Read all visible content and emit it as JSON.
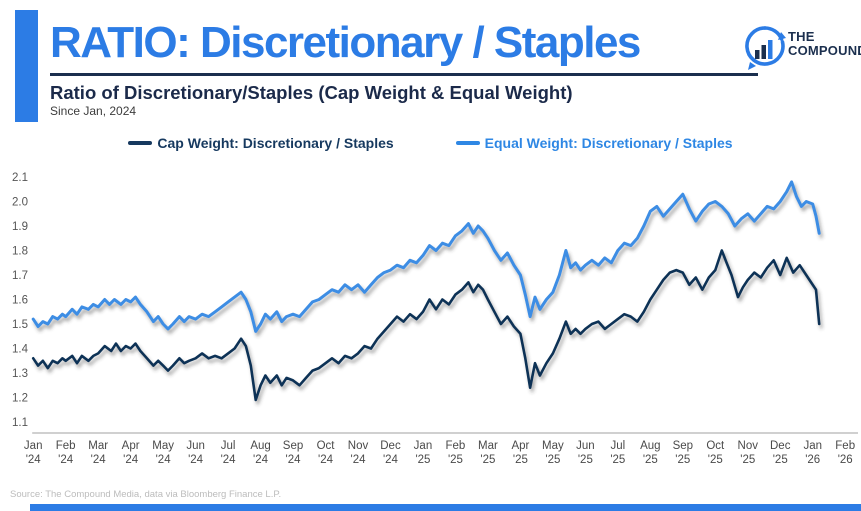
{
  "header": {
    "title": "RATIO: Discretionary / Staples",
    "subtitle": "Ratio of Discretionary/Staples (Cap Weight & Equal Weight)",
    "subnote": "Since Jan, 2024",
    "logo_line1": "THE",
    "logo_line2": "COMPOUND"
  },
  "legend": [
    {
      "label": "Cap Weight: Discretionary / Staples",
      "color": "#16395f"
    },
    {
      "label": "Equal Weight: Discretionary / Staples",
      "color": "#2e87e4"
    }
  ],
  "footer": {
    "source": "Source: The Compound Media, data via Bloomberg Finance L.P."
  },
  "colors": {
    "accent_blue": "#2c7ce5",
    "navy": "#1b2f4e",
    "cap_weight_line": "#0f3356",
    "equal_weight_line": "#3d8de4",
    "axis_text": "#4a4a4a",
    "axis_line": "#b3b3b3"
  },
  "chart_data": {
    "type": "line",
    "title": "Ratio of Discretionary/Staples (Cap Weight & Equal Weight)",
    "subtitle": "Since Jan, 2024",
    "grid": false,
    "legend_position": "top",
    "x_unit": "months since Jan 2024 (0 = Jan '24)",
    "ylim": [
      1.1,
      2.1
    ],
    "y_ticks": [
      2.1,
      2.0,
      1.9,
      1.8,
      1.7,
      1.6,
      1.5,
      1.4,
      1.3,
      1.2,
      1.1
    ],
    "x_tick_labels": {
      "months": [
        "Jan",
        "Feb",
        "Mar",
        "Apr",
        "May",
        "Jun",
        "Jul",
        "Aug",
        "Sep",
        "Oct",
        "Nov",
        "Dec",
        "Jan",
        "Feb",
        "Mar",
        "Apr",
        "May",
        "Jun",
        "Jul",
        "Aug",
        "Sep",
        "Oct",
        "Nov",
        "Dec",
        "Jan",
        "Feb"
      ],
      "years": [
        "'24",
        "'24",
        "'24",
        "'24",
        "'24",
        "'24",
        "'24",
        "'24",
        "'24",
        "'24",
        "'24",
        "'24",
        "'25",
        "'25",
        "'25",
        "'25",
        "'25",
        "'25",
        "'25",
        "'25",
        "'25",
        "'25",
        "'25",
        "'25",
        "'26",
        "'26"
      ]
    },
    "series": [
      {
        "name": "Cap Weight: Discretionary / Staples",
        "color": "#0f3356",
        "points": [
          [
            0.0,
            1.36
          ],
          [
            0.15,
            1.33
          ],
          [
            0.3,
            1.35
          ],
          [
            0.45,
            1.32
          ],
          [
            0.6,
            1.35
          ],
          [
            0.75,
            1.34
          ],
          [
            0.9,
            1.36
          ],
          [
            1.0,
            1.35
          ],
          [
            1.2,
            1.37
          ],
          [
            1.35,
            1.34
          ],
          [
            1.5,
            1.37
          ],
          [
            1.7,
            1.35
          ],
          [
            1.85,
            1.37
          ],
          [
            2.0,
            1.38
          ],
          [
            2.2,
            1.41
          ],
          [
            2.4,
            1.39
          ],
          [
            2.55,
            1.42
          ],
          [
            2.7,
            1.39
          ],
          [
            2.85,
            1.41
          ],
          [
            3.0,
            1.4
          ],
          [
            3.15,
            1.42
          ],
          [
            3.3,
            1.39
          ],
          [
            3.5,
            1.36
          ],
          [
            3.7,
            1.33
          ],
          [
            3.85,
            1.35
          ],
          [
            4.0,
            1.33
          ],
          [
            4.15,
            1.31
          ],
          [
            4.3,
            1.33
          ],
          [
            4.5,
            1.36
          ],
          [
            4.65,
            1.34
          ],
          [
            4.8,
            1.35
          ],
          [
            5.0,
            1.36
          ],
          [
            5.2,
            1.38
          ],
          [
            5.4,
            1.36
          ],
          [
            5.6,
            1.37
          ],
          [
            5.8,
            1.36
          ],
          [
            6.0,
            1.38
          ],
          [
            6.2,
            1.4
          ],
          [
            6.4,
            1.44
          ],
          [
            6.55,
            1.41
          ],
          [
            6.7,
            1.33
          ],
          [
            6.85,
            1.19
          ],
          [
            7.0,
            1.25
          ],
          [
            7.15,
            1.29
          ],
          [
            7.3,
            1.26
          ],
          [
            7.5,
            1.29
          ],
          [
            7.65,
            1.25
          ],
          [
            7.8,
            1.28
          ],
          [
            8.0,
            1.27
          ],
          [
            8.2,
            1.25
          ],
          [
            8.4,
            1.28
          ],
          [
            8.6,
            1.31
          ],
          [
            8.8,
            1.32
          ],
          [
            9.0,
            1.34
          ],
          [
            9.2,
            1.36
          ],
          [
            9.4,
            1.34
          ],
          [
            9.6,
            1.37
          ],
          [
            9.8,
            1.36
          ],
          [
            10.0,
            1.38
          ],
          [
            10.2,
            1.41
          ],
          [
            10.4,
            1.4
          ],
          [
            10.6,
            1.44
          ],
          [
            10.8,
            1.47
          ],
          [
            11.0,
            1.5
          ],
          [
            11.2,
            1.53
          ],
          [
            11.4,
            1.51
          ],
          [
            11.6,
            1.54
          ],
          [
            11.8,
            1.52
          ],
          [
            12.0,
            1.55
          ],
          [
            12.2,
            1.6
          ],
          [
            12.4,
            1.56
          ],
          [
            12.6,
            1.6
          ],
          [
            12.8,
            1.58
          ],
          [
            13.0,
            1.62
          ],
          [
            13.2,
            1.64
          ],
          [
            13.4,
            1.67
          ],
          [
            13.55,
            1.63
          ],
          [
            13.7,
            1.66
          ],
          [
            13.85,
            1.64
          ],
          [
            14.0,
            1.6
          ],
          [
            14.2,
            1.55
          ],
          [
            14.4,
            1.5
          ],
          [
            14.6,
            1.53
          ],
          [
            14.8,
            1.49
          ],
          [
            15.0,
            1.46
          ],
          [
            15.15,
            1.36
          ],
          [
            15.3,
            1.24
          ],
          [
            15.45,
            1.34
          ],
          [
            15.6,
            1.29
          ],
          [
            15.8,
            1.34
          ],
          [
            16.0,
            1.38
          ],
          [
            16.2,
            1.44
          ],
          [
            16.4,
            1.51
          ],
          [
            16.55,
            1.46
          ],
          [
            16.7,
            1.48
          ],
          [
            16.85,
            1.46
          ],
          [
            17.0,
            1.48
          ],
          [
            17.2,
            1.5
          ],
          [
            17.4,
            1.51
          ],
          [
            17.6,
            1.48
          ],
          [
            17.8,
            1.5
          ],
          [
            18.0,
            1.52
          ],
          [
            18.2,
            1.54
          ],
          [
            18.4,
            1.53
          ],
          [
            18.6,
            1.51
          ],
          [
            18.8,
            1.55
          ],
          [
            19.0,
            1.6
          ],
          [
            19.2,
            1.64
          ],
          [
            19.4,
            1.68
          ],
          [
            19.6,
            1.71
          ],
          [
            19.8,
            1.72
          ],
          [
            20.0,
            1.71
          ],
          [
            20.2,
            1.66
          ],
          [
            20.4,
            1.69
          ],
          [
            20.6,
            1.64
          ],
          [
            20.8,
            1.69
          ],
          [
            21.0,
            1.72
          ],
          [
            21.2,
            1.8
          ],
          [
            21.35,
            1.75
          ],
          [
            21.5,
            1.7
          ],
          [
            21.7,
            1.61
          ],
          [
            21.85,
            1.65
          ],
          [
            22.0,
            1.68
          ],
          [
            22.2,
            1.71
          ],
          [
            22.4,
            1.69
          ],
          [
            22.6,
            1.73
          ],
          [
            22.8,
            1.76
          ],
          [
            23.0,
            1.7
          ],
          [
            23.2,
            1.77
          ],
          [
            23.4,
            1.71
          ],
          [
            23.6,
            1.74
          ],
          [
            23.8,
            1.7
          ],
          [
            23.95,
            1.67
          ],
          [
            24.1,
            1.64
          ],
          [
            24.2,
            1.5
          ]
        ]
      },
      {
        "name": "Equal Weight: Discretionary / Staples",
        "color": "#3d8de4",
        "points": [
          [
            0.0,
            1.52
          ],
          [
            0.15,
            1.49
          ],
          [
            0.3,
            1.51
          ],
          [
            0.45,
            1.5
          ],
          [
            0.6,
            1.53
          ],
          [
            0.75,
            1.52
          ],
          [
            0.9,
            1.54
          ],
          [
            1.0,
            1.53
          ],
          [
            1.2,
            1.56
          ],
          [
            1.35,
            1.54
          ],
          [
            1.5,
            1.57
          ],
          [
            1.7,
            1.56
          ],
          [
            1.85,
            1.58
          ],
          [
            2.0,
            1.57
          ],
          [
            2.2,
            1.6
          ],
          [
            2.35,
            1.58
          ],
          [
            2.5,
            1.6
          ],
          [
            2.7,
            1.58
          ],
          [
            2.85,
            1.6
          ],
          [
            3.0,
            1.59
          ],
          [
            3.15,
            1.61
          ],
          [
            3.3,
            1.58
          ],
          [
            3.5,
            1.55
          ],
          [
            3.7,
            1.51
          ],
          [
            3.85,
            1.53
          ],
          [
            4.0,
            1.5
          ],
          [
            4.15,
            1.48
          ],
          [
            4.3,
            1.5
          ],
          [
            4.5,
            1.53
          ],
          [
            4.65,
            1.51
          ],
          [
            4.8,
            1.53
          ],
          [
            5.0,
            1.52
          ],
          [
            5.2,
            1.54
          ],
          [
            5.4,
            1.53
          ],
          [
            5.6,
            1.55
          ],
          [
            5.8,
            1.57
          ],
          [
            6.0,
            1.59
          ],
          [
            6.2,
            1.61
          ],
          [
            6.4,
            1.63
          ],
          [
            6.55,
            1.6
          ],
          [
            6.7,
            1.55
          ],
          [
            6.85,
            1.47
          ],
          [
            7.0,
            1.5
          ],
          [
            7.15,
            1.54
          ],
          [
            7.3,
            1.52
          ],
          [
            7.5,
            1.55
          ],
          [
            7.65,
            1.51
          ],
          [
            7.8,
            1.53
          ],
          [
            8.0,
            1.54
          ],
          [
            8.2,
            1.53
          ],
          [
            8.4,
            1.56
          ],
          [
            8.6,
            1.59
          ],
          [
            8.8,
            1.6
          ],
          [
            9.0,
            1.62
          ],
          [
            9.2,
            1.64
          ],
          [
            9.4,
            1.63
          ],
          [
            9.6,
            1.66
          ],
          [
            9.8,
            1.64
          ],
          [
            10.0,
            1.66
          ],
          [
            10.2,
            1.63
          ],
          [
            10.4,
            1.66
          ],
          [
            10.6,
            1.69
          ],
          [
            10.8,
            1.71
          ],
          [
            11.0,
            1.72
          ],
          [
            11.2,
            1.74
          ],
          [
            11.4,
            1.73
          ],
          [
            11.6,
            1.76
          ],
          [
            11.8,
            1.75
          ],
          [
            12.0,
            1.78
          ],
          [
            12.2,
            1.82
          ],
          [
            12.4,
            1.8
          ],
          [
            12.6,
            1.83
          ],
          [
            12.8,
            1.82
          ],
          [
            13.0,
            1.86
          ],
          [
            13.2,
            1.88
          ],
          [
            13.4,
            1.91
          ],
          [
            13.55,
            1.87
          ],
          [
            13.7,
            1.9
          ],
          [
            13.85,
            1.88
          ],
          [
            14.0,
            1.85
          ],
          [
            14.2,
            1.8
          ],
          [
            14.4,
            1.76
          ],
          [
            14.6,
            1.79
          ],
          [
            14.8,
            1.74
          ],
          [
            15.0,
            1.7
          ],
          [
            15.15,
            1.62
          ],
          [
            15.3,
            1.53
          ],
          [
            15.45,
            1.61
          ],
          [
            15.6,
            1.56
          ],
          [
            15.8,
            1.6
          ],
          [
            16.0,
            1.63
          ],
          [
            16.2,
            1.7
          ],
          [
            16.4,
            1.8
          ],
          [
            16.55,
            1.73
          ],
          [
            16.7,
            1.75
          ],
          [
            16.85,
            1.72
          ],
          [
            17.0,
            1.74
          ],
          [
            17.2,
            1.76
          ],
          [
            17.4,
            1.74
          ],
          [
            17.6,
            1.77
          ],
          [
            17.8,
            1.75
          ],
          [
            18.0,
            1.8
          ],
          [
            18.2,
            1.83
          ],
          [
            18.4,
            1.82
          ],
          [
            18.6,
            1.85
          ],
          [
            18.8,
            1.9
          ],
          [
            19.0,
            1.96
          ],
          [
            19.2,
            1.98
          ],
          [
            19.4,
            1.94
          ],
          [
            19.6,
            1.97
          ],
          [
            19.8,
            2.0
          ],
          [
            20.0,
            2.03
          ],
          [
            20.2,
            1.97
          ],
          [
            20.4,
            1.92
          ],
          [
            20.6,
            1.96
          ],
          [
            20.8,
            1.99
          ],
          [
            21.0,
            2.0
          ],
          [
            21.2,
            1.98
          ],
          [
            21.4,
            1.95
          ],
          [
            21.6,
            1.9
          ],
          [
            21.8,
            1.93
          ],
          [
            22.0,
            1.95
          ],
          [
            22.2,
            1.92
          ],
          [
            22.4,
            1.95
          ],
          [
            22.6,
            1.98
          ],
          [
            22.8,
            1.97
          ],
          [
            23.0,
            2.0
          ],
          [
            23.2,
            2.04
          ],
          [
            23.35,
            2.08
          ],
          [
            23.5,
            2.02
          ],
          [
            23.65,
            1.98
          ],
          [
            23.8,
            2.0
          ],
          [
            24.0,
            1.99
          ],
          [
            24.1,
            1.94
          ],
          [
            24.2,
            1.87
          ]
        ]
      }
    ]
  }
}
